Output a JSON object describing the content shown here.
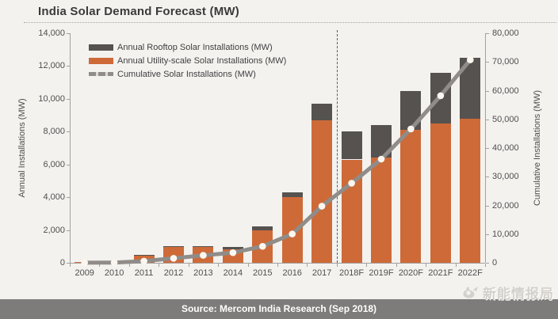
{
  "title": "India Solar Demand Forecast (MW)",
  "source_bar": {
    "text": "Source: Mercom  India  Research (Sep 2018)"
  },
  "watermark": {
    "icon": "dove-hand-logo-icon",
    "text": "新能情报局"
  },
  "chart_data": {
    "type": "bar",
    "subtype": "stacked-bar-with-cumulative-line",
    "title": "India Solar Demand Forecast (MW)",
    "categories": [
      "2009",
      "2010",
      "2011",
      "2012",
      "2013",
      "2014",
      "2015",
      "2016",
      "2017",
      "2018F",
      "2019F",
      "2020F",
      "2021F",
      "2022F"
    ],
    "series": [
      {
        "name": "Annual Rooftop Solar Installations (MW)",
        "type": "bar",
        "stack_index": 1,
        "color": "#555250",
        "values": [
          5,
          10,
          50,
          50,
          60,
          150,
          200,
          300,
          1000,
          1700,
          2000,
          2400,
          3100,
          3700
        ]
      },
      {
        "name": "Annual Utility-scale Solar Installations (MW)",
        "type": "bar",
        "stack_index": 0,
        "color": "#CE6A38",
        "values": [
          25,
          40,
          450,
          950,
          950,
          800,
          2000,
          4000,
          8700,
          6300,
          6400,
          8100,
          8500,
          8800
        ]
      },
      {
        "name": "Cumulative Solar Installations (MW)",
        "type": "line",
        "axis": "right",
        "color": "#8F8C89",
        "marker_color": "#FBF7F0",
        "values": [
          30,
          80,
          580,
          1580,
          2590,
          3540,
          5740,
          10040,
          19740,
          27740,
          36140,
          46640,
          58240,
          70740
        ]
      }
    ],
    "left_axis": {
      "label": "Annual Installations (MW)",
      "min": 0,
      "max": 14000,
      "step": 2000,
      "tick_labels": [
        "0",
        "2,000",
        "4,000",
        "6,000",
        "8,000",
        "10,000",
        "12,000",
        "14,000"
      ]
    },
    "right_axis": {
      "label": "Cumulative Installations (MW)",
      "min": 0,
      "max": 80000,
      "step": 10000,
      "tick_labels": [
        "0",
        "10,000",
        "20,000",
        "30,000",
        "40,000",
        "50,000",
        "60,000",
        "70,000",
        "80,000"
      ]
    },
    "forecast_divider_after": "2017",
    "legend_position": "top-left",
    "grid": "off"
  }
}
